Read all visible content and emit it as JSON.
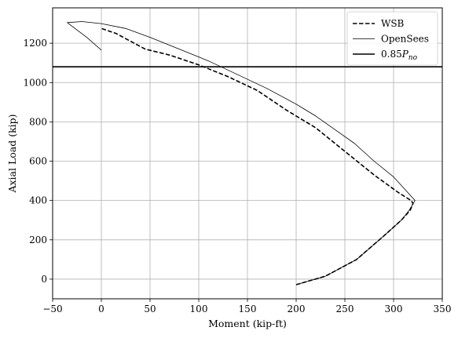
{
  "chart_data": {
    "type": "line",
    "xlabel": "Moment (kip-ft)",
    "ylabel": "Axial Load (kip)",
    "xlim": [
      -50,
      350
    ],
    "ylim": [
      -100,
      1380
    ],
    "xticks": [
      -50,
      0,
      50,
      100,
      150,
      200,
      250,
      300,
      350
    ],
    "yticks": [
      0,
      200,
      400,
      600,
      800,
      1000,
      1200
    ],
    "xtick_labels": [
      "−50",
      "0",
      "50",
      "100",
      "150",
      "200",
      "250",
      "300",
      "350"
    ],
    "ytick_labels": [
      "0",
      "200",
      "400",
      "600",
      "800",
      "1000",
      "1200"
    ],
    "grid": true,
    "legend_position": "top-right",
    "series": [
      {
        "name": "WSB",
        "style": "dashed",
        "color": "#000000",
        "points": [
          [
            200,
            -28
          ],
          [
            230,
            15
          ],
          [
            262,
            100
          ],
          [
            290,
            220
          ],
          [
            308,
            300
          ],
          [
            317,
            350
          ],
          [
            320,
            385
          ],
          [
            318,
            400
          ],
          [
            305,
            440
          ],
          [
            280,
            530
          ],
          [
            250,
            650
          ],
          [
            220,
            770
          ],
          [
            190,
            860
          ],
          [
            160,
            960
          ],
          [
            130,
            1030
          ],
          [
            100,
            1090
          ],
          [
            70,
            1140
          ],
          [
            45,
            1170
          ],
          [
            30,
            1210
          ],
          [
            15,
            1250
          ],
          [
            0,
            1275
          ]
        ]
      },
      {
        "name": "OpenSees",
        "style": "solid-thin",
        "color": "#000000",
        "points": [
          [
            200,
            -28
          ],
          [
            230,
            15
          ],
          [
            262,
            100
          ],
          [
            290,
            220
          ],
          [
            308,
            300
          ],
          [
            316,
            350
          ],
          [
            322,
            400
          ],
          [
            300,
            520
          ],
          [
            280,
            600
          ],
          [
            260,
            690
          ],
          [
            240,
            760
          ],
          [
            220,
            830
          ],
          [
            200,
            890
          ],
          [
            170,
            970
          ],
          [
            140,
            1040
          ],
          [
            110,
            1110
          ],
          [
            80,
            1170
          ],
          [
            50,
            1230
          ],
          [
            25,
            1275
          ],
          [
            0,
            1300
          ],
          [
            -20,
            1310
          ],
          [
            -35,
            1305
          ],
          [
            -15,
            1230
          ],
          [
            0,
            1165
          ]
        ]
      },
      {
        "name": "0.85P_no",
        "label_html": "0.85P",
        "label_sub": "no",
        "style": "solid-thick",
        "color": "#000000",
        "y": 1080
      }
    ]
  }
}
